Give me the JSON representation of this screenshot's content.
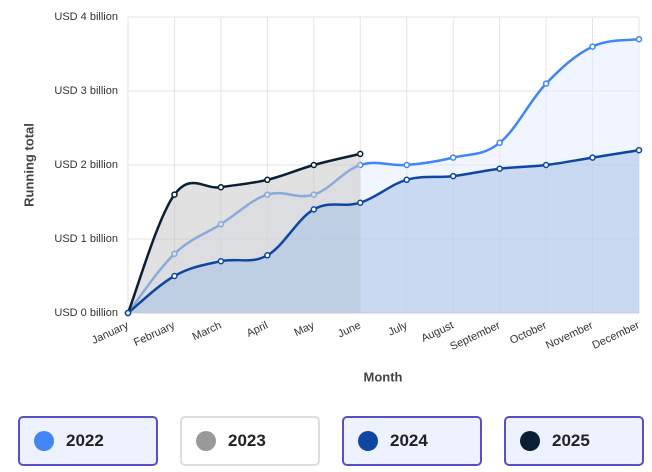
{
  "chart_data": {
    "type": "area",
    "x_label": "Month",
    "y_label": "Running total",
    "categories": [
      "January",
      "February",
      "March",
      "April",
      "May",
      "June",
      "July",
      "August",
      "September",
      "October",
      "November",
      "December"
    ],
    "ylim": [
      0,
      4
    ],
    "yticks": [
      {
        "value": 0,
        "label": "USD 0 billion"
      },
      {
        "value": 1,
        "label": "USD 1 billion"
      },
      {
        "value": 2,
        "label": "USD 2 billion"
      },
      {
        "value": 3,
        "label": "USD 3 billion"
      },
      {
        "value": 4,
        "label": "USD 4 billion"
      }
    ],
    "grid": true,
    "legend": "bottom",
    "series": [
      {
        "name": "2022",
        "color": "#4285f4",
        "fill": "#e6edff",
        "visible": true,
        "values": [
          0,
          0.8,
          1.2,
          1.6,
          1.6,
          2.0,
          2.0,
          2.1,
          2.3,
          3.1,
          3.6,
          3.7
        ]
      },
      {
        "name": "2023",
        "color": "#999999",
        "fill": "#eeeeee",
        "visible": false,
        "values": [
          null,
          null,
          null,
          null,
          null,
          null,
          null,
          null,
          null,
          null,
          null,
          null
        ]
      },
      {
        "name": "2024",
        "color": "#0d47a1",
        "fill": "#a9c1e8",
        "visible": true,
        "values": [
          0,
          0.5,
          0.7,
          0.78,
          1.4,
          1.49,
          1.8,
          1.85,
          1.95,
          2.0,
          2.1,
          2.2
        ]
      },
      {
        "name": "2025",
        "color": "#0a1f33",
        "fill": "#c8c8c8",
        "visible": true,
        "values": [
          0,
          1.6,
          1.7,
          1.8,
          2.0,
          2.15,
          null,
          null,
          null,
          null,
          null,
          null
        ]
      }
    ]
  }
}
